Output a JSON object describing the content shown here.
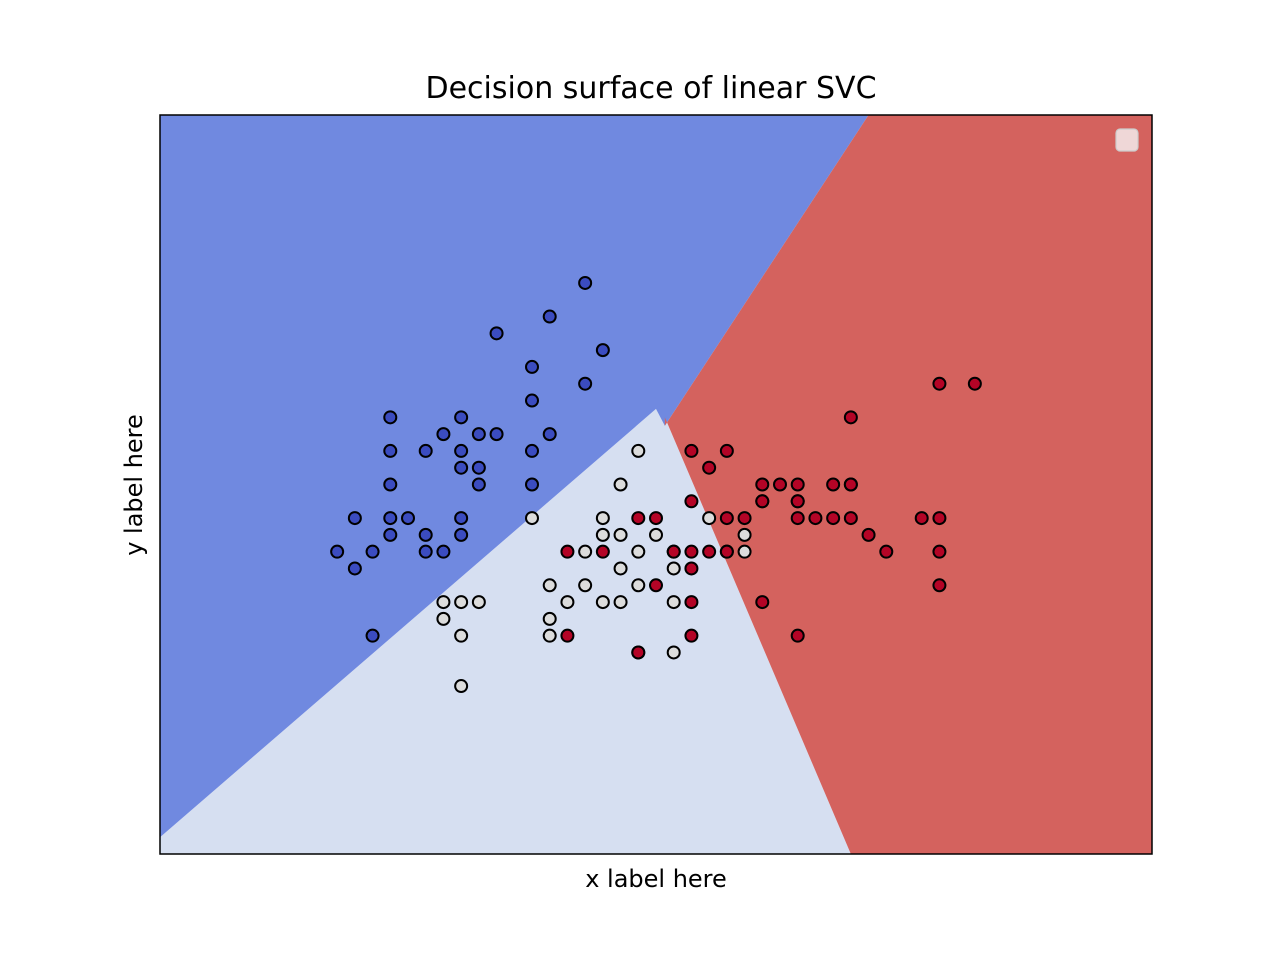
{
  "chart_data": {
    "type": "scatter",
    "title": "Decision surface of linear SVC",
    "xlabel": "x label here",
    "ylabel": "y label here",
    "xlim": [
      3.3,
      8.9
    ],
    "ylim": [
      1.0,
      5.4
    ],
    "xticks": [],
    "yticks": [],
    "grid": false,
    "legend": {
      "placement": "top-right",
      "entries": []
    },
    "regions": [
      {
        "class": 0,
        "color": "#7089e0"
      },
      {
        "class": 1,
        "color": "#d6dff1"
      },
      {
        "class": 2,
        "color": "#d4625e"
      }
    ],
    "series": [
      {
        "class": 0,
        "color": "#3b4cc0",
        "points": [
          [
            5.7,
            4.4
          ],
          [
            5.5,
            4.2
          ],
          [
            5.8,
            4.0
          ],
          [
            5.2,
            4.1
          ],
          [
            5.4,
            3.9
          ],
          [
            5.7,
            3.8
          ],
          [
            4.6,
            3.6
          ],
          [
            5.0,
            3.6
          ],
          [
            4.9,
            3.5
          ],
          [
            5.1,
            3.5
          ],
          [
            5.2,
            3.5
          ],
          [
            4.6,
            3.4
          ],
          [
            4.8,
            3.4
          ],
          [
            5.0,
            3.4
          ],
          [
            5.4,
            3.4
          ],
          [
            5.5,
            3.5
          ],
          [
            5.0,
            3.3
          ],
          [
            5.1,
            3.3
          ],
          [
            5.4,
            3.2
          ],
          [
            5.1,
            3.2
          ],
          [
            4.6,
            3.2
          ],
          [
            4.4,
            3.0
          ],
          [
            4.6,
            3.0
          ],
          [
            4.7,
            3.0
          ],
          [
            5.0,
            3.0
          ],
          [
            4.6,
            2.9
          ],
          [
            4.8,
            2.9
          ],
          [
            5.0,
            2.9
          ],
          [
            4.3,
            2.8
          ],
          [
            4.5,
            2.8
          ],
          [
            4.4,
            2.7
          ],
          [
            4.8,
            2.8
          ],
          [
            4.9,
            2.8
          ],
          [
            4.5,
            2.3
          ],
          [
            5.4,
            3.7
          ]
        ]
      },
      {
        "class": 1,
        "color": "#dcdcdc",
        "points": [
          [
            6.0,
            3.4
          ],
          [
            5.9,
            3.2
          ],
          [
            6.7,
            3.1
          ],
          [
            5.4,
            3.0
          ],
          [
            5.8,
            3.0
          ],
          [
            6.4,
            3.0
          ],
          [
            5.8,
            2.9
          ],
          [
            5.9,
            2.9
          ],
          [
            6.1,
            2.9
          ],
          [
            6.6,
            2.9
          ],
          [
            6.5,
            2.8
          ],
          [
            5.7,
            2.8
          ],
          [
            6.0,
            2.8
          ],
          [
            6.2,
            2.8
          ],
          [
            6.6,
            2.8
          ],
          [
            6.9,
            3.1
          ],
          [
            5.7,
            2.6
          ],
          [
            5.9,
            2.7
          ],
          [
            6.0,
            2.6
          ],
          [
            6.2,
            2.7
          ],
          [
            5.0,
            2.5
          ],
          [
            5.5,
            2.6
          ],
          [
            5.6,
            2.5
          ],
          [
            5.8,
            2.5
          ],
          [
            5.1,
            2.5
          ],
          [
            5.5,
            2.4
          ],
          [
            4.9,
            2.5
          ],
          [
            5.5,
            2.3
          ],
          [
            4.9,
            2.4
          ],
          [
            5.0,
            2.3
          ],
          [
            6.0,
            2.2
          ],
          [
            6.2,
            2.2
          ],
          [
            5.0,
            2.0
          ],
          [
            6.2,
            2.5
          ],
          [
            5.9,
            2.5
          ]
        ]
      },
      {
        "class": 2,
        "color": "#b40426",
        "points": [
          [
            7.7,
            3.8
          ],
          [
            7.9,
            3.8
          ],
          [
            7.2,
            3.6
          ],
          [
            6.5,
            3.4
          ],
          [
            6.3,
            3.4
          ],
          [
            6.4,
            3.3
          ],
          [
            6.9,
            3.2
          ],
          [
            7.1,
            3.2
          ],
          [
            7.2,
            3.2
          ],
          [
            6.7,
            3.2
          ],
          [
            6.8,
            3.2
          ],
          [
            7.2,
            3.2
          ],
          [
            6.3,
            3.1
          ],
          [
            6.7,
            3.1
          ],
          [
            6.9,
            3.1
          ],
          [
            7.2,
            3.0
          ],
          [
            6.6,
            3.0
          ],
          [
            7.0,
            3.0
          ],
          [
            7.1,
            3.0
          ],
          [
            7.6,
            3.0
          ],
          [
            7.7,
            3.0
          ],
          [
            7.3,
            2.9
          ],
          [
            6.9,
            3.0
          ],
          [
            6.4,
            2.8
          ],
          [
            6.3,
            2.8
          ],
          [
            6.5,
            2.8
          ],
          [
            6.2,
            2.8
          ],
          [
            6.5,
            3.0
          ],
          [
            6.0,
            3.0
          ],
          [
            6.1,
            3.0
          ],
          [
            7.4,
            2.8
          ],
          [
            7.7,
            2.8
          ],
          [
            6.7,
            2.5
          ],
          [
            5.8,
            2.8
          ],
          [
            6.3,
            2.7
          ],
          [
            6.3,
            2.5
          ],
          [
            7.7,
            2.6
          ],
          [
            6.1,
            2.6
          ],
          [
            6.9,
            2.3
          ],
          [
            6.3,
            2.3
          ],
          [
            5.6,
            2.8
          ],
          [
            5.6,
            2.3
          ],
          [
            6.0,
            2.2
          ]
        ]
      }
    ]
  }
}
